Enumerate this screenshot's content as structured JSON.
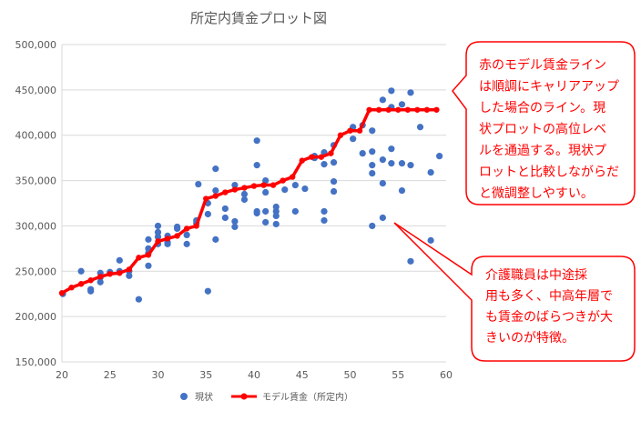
{
  "chart_data": {
    "type": "scatter",
    "title": "所定内賃金プロット図",
    "xlabel": "",
    "ylabel": "",
    "xlim": [
      20,
      60
    ],
    "ylim": [
      150000,
      500000
    ],
    "x_ticks": [
      "20",
      "25",
      "30",
      "35",
      "40",
      "45",
      "50",
      "55",
      "60"
    ],
    "y_ticks": [
      "150,000",
      "200,000",
      "250,000",
      "300,000",
      "350,000",
      "400,000",
      "450,000",
      "500,000"
    ],
    "grid": "horizontal",
    "legend_position": "bottom",
    "legend": [
      "現状",
      "モデル賃金（所定内）"
    ],
    "colors": {
      "scatter": "#4472C4",
      "line": "#FF0000",
      "grid": "#D9D9D9",
      "callout": "#FF0000"
    },
    "series": [
      {
        "name": "現状",
        "type": "scatter",
        "points": [
          [
            20.1,
            225000
          ],
          [
            22,
            250000
          ],
          [
            23,
            230000
          ],
          [
            23,
            228000
          ],
          [
            24,
            248000
          ],
          [
            24,
            243000
          ],
          [
            24,
            238000
          ],
          [
            25,
            249000
          ],
          [
            26,
            262000
          ],
          [
            26,
            250000
          ],
          [
            27,
            250000
          ],
          [
            27,
            245000
          ],
          [
            28,
            219000
          ],
          [
            29,
            285000
          ],
          [
            29,
            275000
          ],
          [
            29,
            270000
          ],
          [
            29,
            256000
          ],
          [
            30,
            300000
          ],
          [
            30,
            293000
          ],
          [
            30,
            288000
          ],
          [
            30,
            280000
          ],
          [
            31,
            289000
          ],
          [
            31,
            282000
          ],
          [
            31,
            280000
          ],
          [
            32,
            299000
          ],
          [
            32,
            297000
          ],
          [
            33,
            290000
          ],
          [
            33,
            280000
          ],
          [
            34,
            306000
          ],
          [
            34,
            303000
          ],
          [
            34.2,
            346000
          ],
          [
            35.2,
            325000
          ],
          [
            35.2,
            313000
          ],
          [
            35.2,
            228000
          ],
          [
            36,
            363000
          ],
          [
            36,
            339000
          ],
          [
            36,
            285000
          ],
          [
            37,
            319000
          ],
          [
            37,
            309000
          ],
          [
            38,
            345000
          ],
          [
            38,
            305000
          ],
          [
            38,
            299000
          ],
          [
            39,
            335000
          ],
          [
            39,
            329000
          ],
          [
            40.3,
            394000
          ],
          [
            40.3,
            367000
          ],
          [
            40.3,
            316000
          ],
          [
            40.3,
            314000
          ],
          [
            41.2,
            350000
          ],
          [
            41.2,
            337000
          ],
          [
            41.2,
            316000
          ],
          [
            41.2,
            304000
          ],
          [
            42.3,
            321000
          ],
          [
            42.3,
            316000
          ],
          [
            42.3,
            311000
          ],
          [
            42.3,
            302000
          ],
          [
            43.2,
            340000
          ],
          [
            44.3,
            345000
          ],
          [
            44.3,
            316000
          ],
          [
            45.3,
            341000
          ],
          [
            46.3,
            377000
          ],
          [
            46.3,
            375000
          ],
          [
            47.3,
            381000
          ],
          [
            47.3,
            368000
          ],
          [
            47.3,
            316000
          ],
          [
            47.3,
            306000
          ],
          [
            48.3,
            389000
          ],
          [
            48.3,
            370000
          ],
          [
            48.3,
            349000
          ],
          [
            48.3,
            338000
          ],
          [
            50.3,
            409000
          ],
          [
            50.3,
            396000
          ],
          [
            51.3,
            411000
          ],
          [
            51.3,
            380000
          ],
          [
            52.3,
            405000
          ],
          [
            52.3,
            382000
          ],
          [
            52.3,
            367000
          ],
          [
            52.3,
            358000
          ],
          [
            52.3,
            300000
          ],
          [
            53.4,
            439000
          ],
          [
            53.4,
            373000
          ],
          [
            53.4,
            347000
          ],
          [
            53.4,
            309000
          ],
          [
            54.3,
            449000
          ],
          [
            54.3,
            431000
          ],
          [
            54.3,
            385000
          ],
          [
            54.3,
            369000
          ],
          [
            55.4,
            434000
          ],
          [
            55.4,
            369000
          ],
          [
            55.4,
            339000
          ],
          [
            56.3,
            447000
          ],
          [
            56.3,
            367000
          ],
          [
            56.3,
            261000
          ],
          [
            57.3,
            409000
          ],
          [
            58.4,
            359000
          ],
          [
            58.4,
            284000
          ],
          [
            59.3,
            377000
          ]
        ]
      },
      {
        "name": "モデル賃金（所定内）",
        "type": "line",
        "x": [
          20,
          21,
          22,
          23,
          24,
          25,
          26,
          27,
          28,
          29,
          30,
          31,
          32,
          33,
          34,
          35,
          36,
          37,
          38,
          39,
          40,
          41,
          42,
          43,
          44,
          45,
          46,
          47,
          48,
          49,
          50,
          51,
          52,
          53,
          54,
          55,
          56,
          57,
          58,
          59
        ],
        "values": [
          226000,
          232000,
          236000,
          240000,
          244000,
          247000,
          248000,
          252000,
          265000,
          268000,
          283000,
          286000,
          289000,
          297000,
          300000,
          330000,
          333000,
          337000,
          340000,
          342000,
          344000,
          345000,
          345000,
          350000,
          354000,
          372000,
          376000,
          376000,
          380000,
          400000,
          405000,
          405000,
          428000,
          428000,
          428000,
          428000,
          428000,
          428000,
          428000,
          428000
        ]
      }
    ],
    "annotations": [
      {
        "lines": [
          "赤のモデル賃金ライン",
          "は順調にキャリアアップ",
          "した場合のライン。現",
          "状プロットの高位レベ",
          "ルを通過する。現状プ",
          "ロットと比較しながらだ",
          "と微調整しやすい。"
        ]
      },
      {
        "lines": [
          "介護職員は中途採",
          "用も多く、中高年層で",
          "も賃金のばらつきが大",
          "きいのが特徴。"
        ]
      }
    ]
  }
}
